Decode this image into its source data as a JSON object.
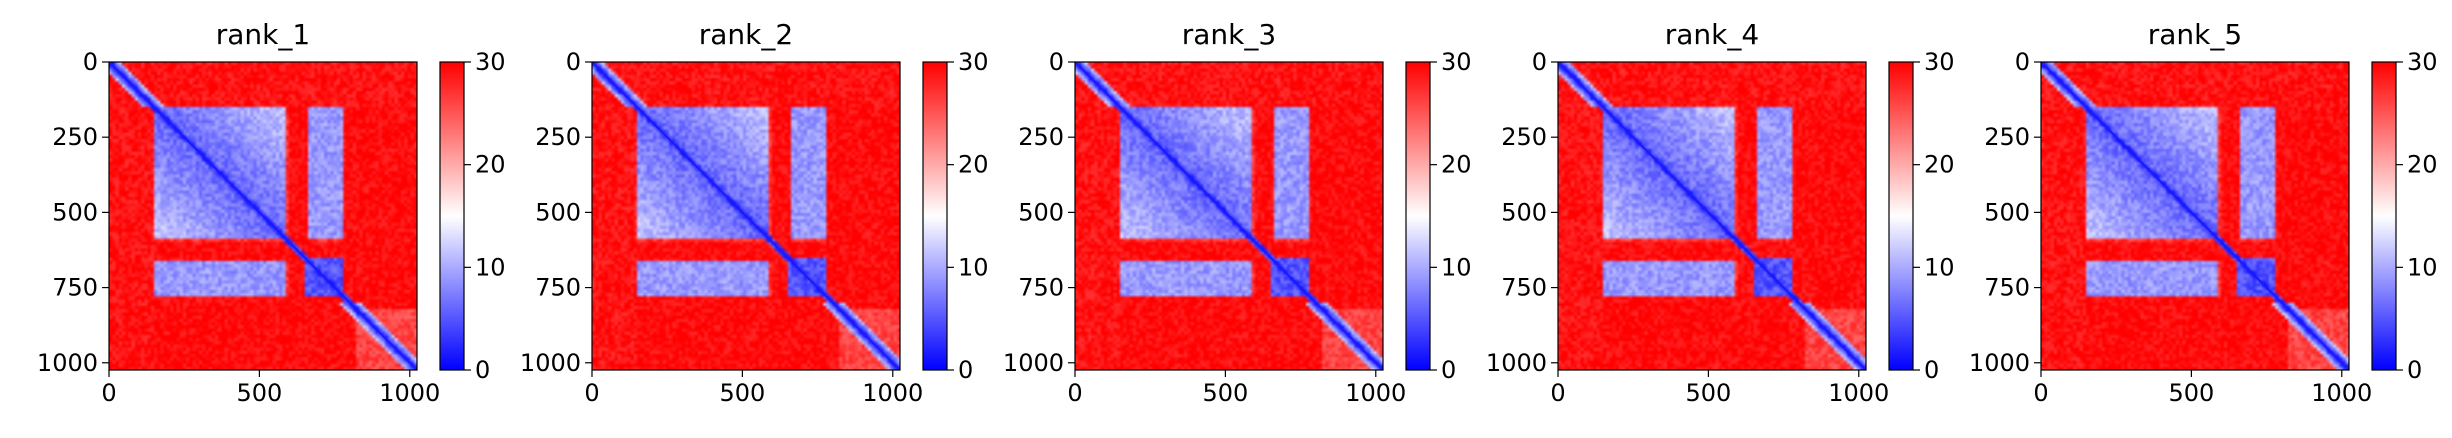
{
  "chart_data": [
    {
      "type": "heatmap",
      "title": "rank_1",
      "x_ticks": [
        0,
        500,
        1000
      ],
      "y_ticks": [
        0,
        250,
        500,
        750,
        1000
      ],
      "xlim": [
        0,
        1024
      ],
      "ylim": [
        1024,
        0
      ],
      "colorbar": {
        "min": 0,
        "max": 30,
        "ticks": [
          0,
          10,
          20,
          30
        ],
        "colormap": "bwr"
      }
    },
    {
      "type": "heatmap",
      "title": "rank_2",
      "x_ticks": [
        0,
        500,
        1000
      ],
      "y_ticks": [
        0,
        250,
        500,
        750,
        1000
      ],
      "xlim": [
        0,
        1024
      ],
      "ylim": [
        1024,
        0
      ],
      "colorbar": {
        "min": 0,
        "max": 30,
        "ticks": [
          0,
          10,
          20,
          30
        ],
        "colormap": "bwr"
      }
    },
    {
      "type": "heatmap",
      "title": "rank_3",
      "x_ticks": [
        0,
        500,
        1000
      ],
      "y_ticks": [
        0,
        250,
        500,
        750,
        1000
      ],
      "xlim": [
        0,
        1024
      ],
      "ylim": [
        1024,
        0
      ],
      "colorbar": {
        "min": 0,
        "max": 30,
        "ticks": [
          0,
          10,
          20,
          30
        ],
        "colormap": "bwr"
      }
    },
    {
      "type": "heatmap",
      "title": "rank_4",
      "x_ticks": [
        0,
        500,
        1000
      ],
      "y_ticks": [
        0,
        250,
        500,
        750,
        1000
      ],
      "xlim": [
        0,
        1024
      ],
      "ylim": [
        1024,
        0
      ],
      "colorbar": {
        "min": 0,
        "max": 30,
        "ticks": [
          0,
          10,
          20,
          30
        ],
        "colormap": "bwr"
      }
    },
    {
      "type": "heatmap",
      "title": "rank_5",
      "x_ticks": [
        0,
        500,
        1000
      ],
      "y_ticks": [
        0,
        250,
        500,
        750,
        1000
      ],
      "xlim": [
        0,
        1024
      ],
      "ylim": [
        1024,
        0
      ],
      "colorbar": {
        "min": 0,
        "max": 30,
        "ticks": [
          0,
          10,
          20,
          30
        ],
        "colormap": "bwr"
      }
    }
  ],
  "colors": {
    "low": "#0000ff",
    "mid": "#ffffff",
    "high": "#ff0000"
  }
}
